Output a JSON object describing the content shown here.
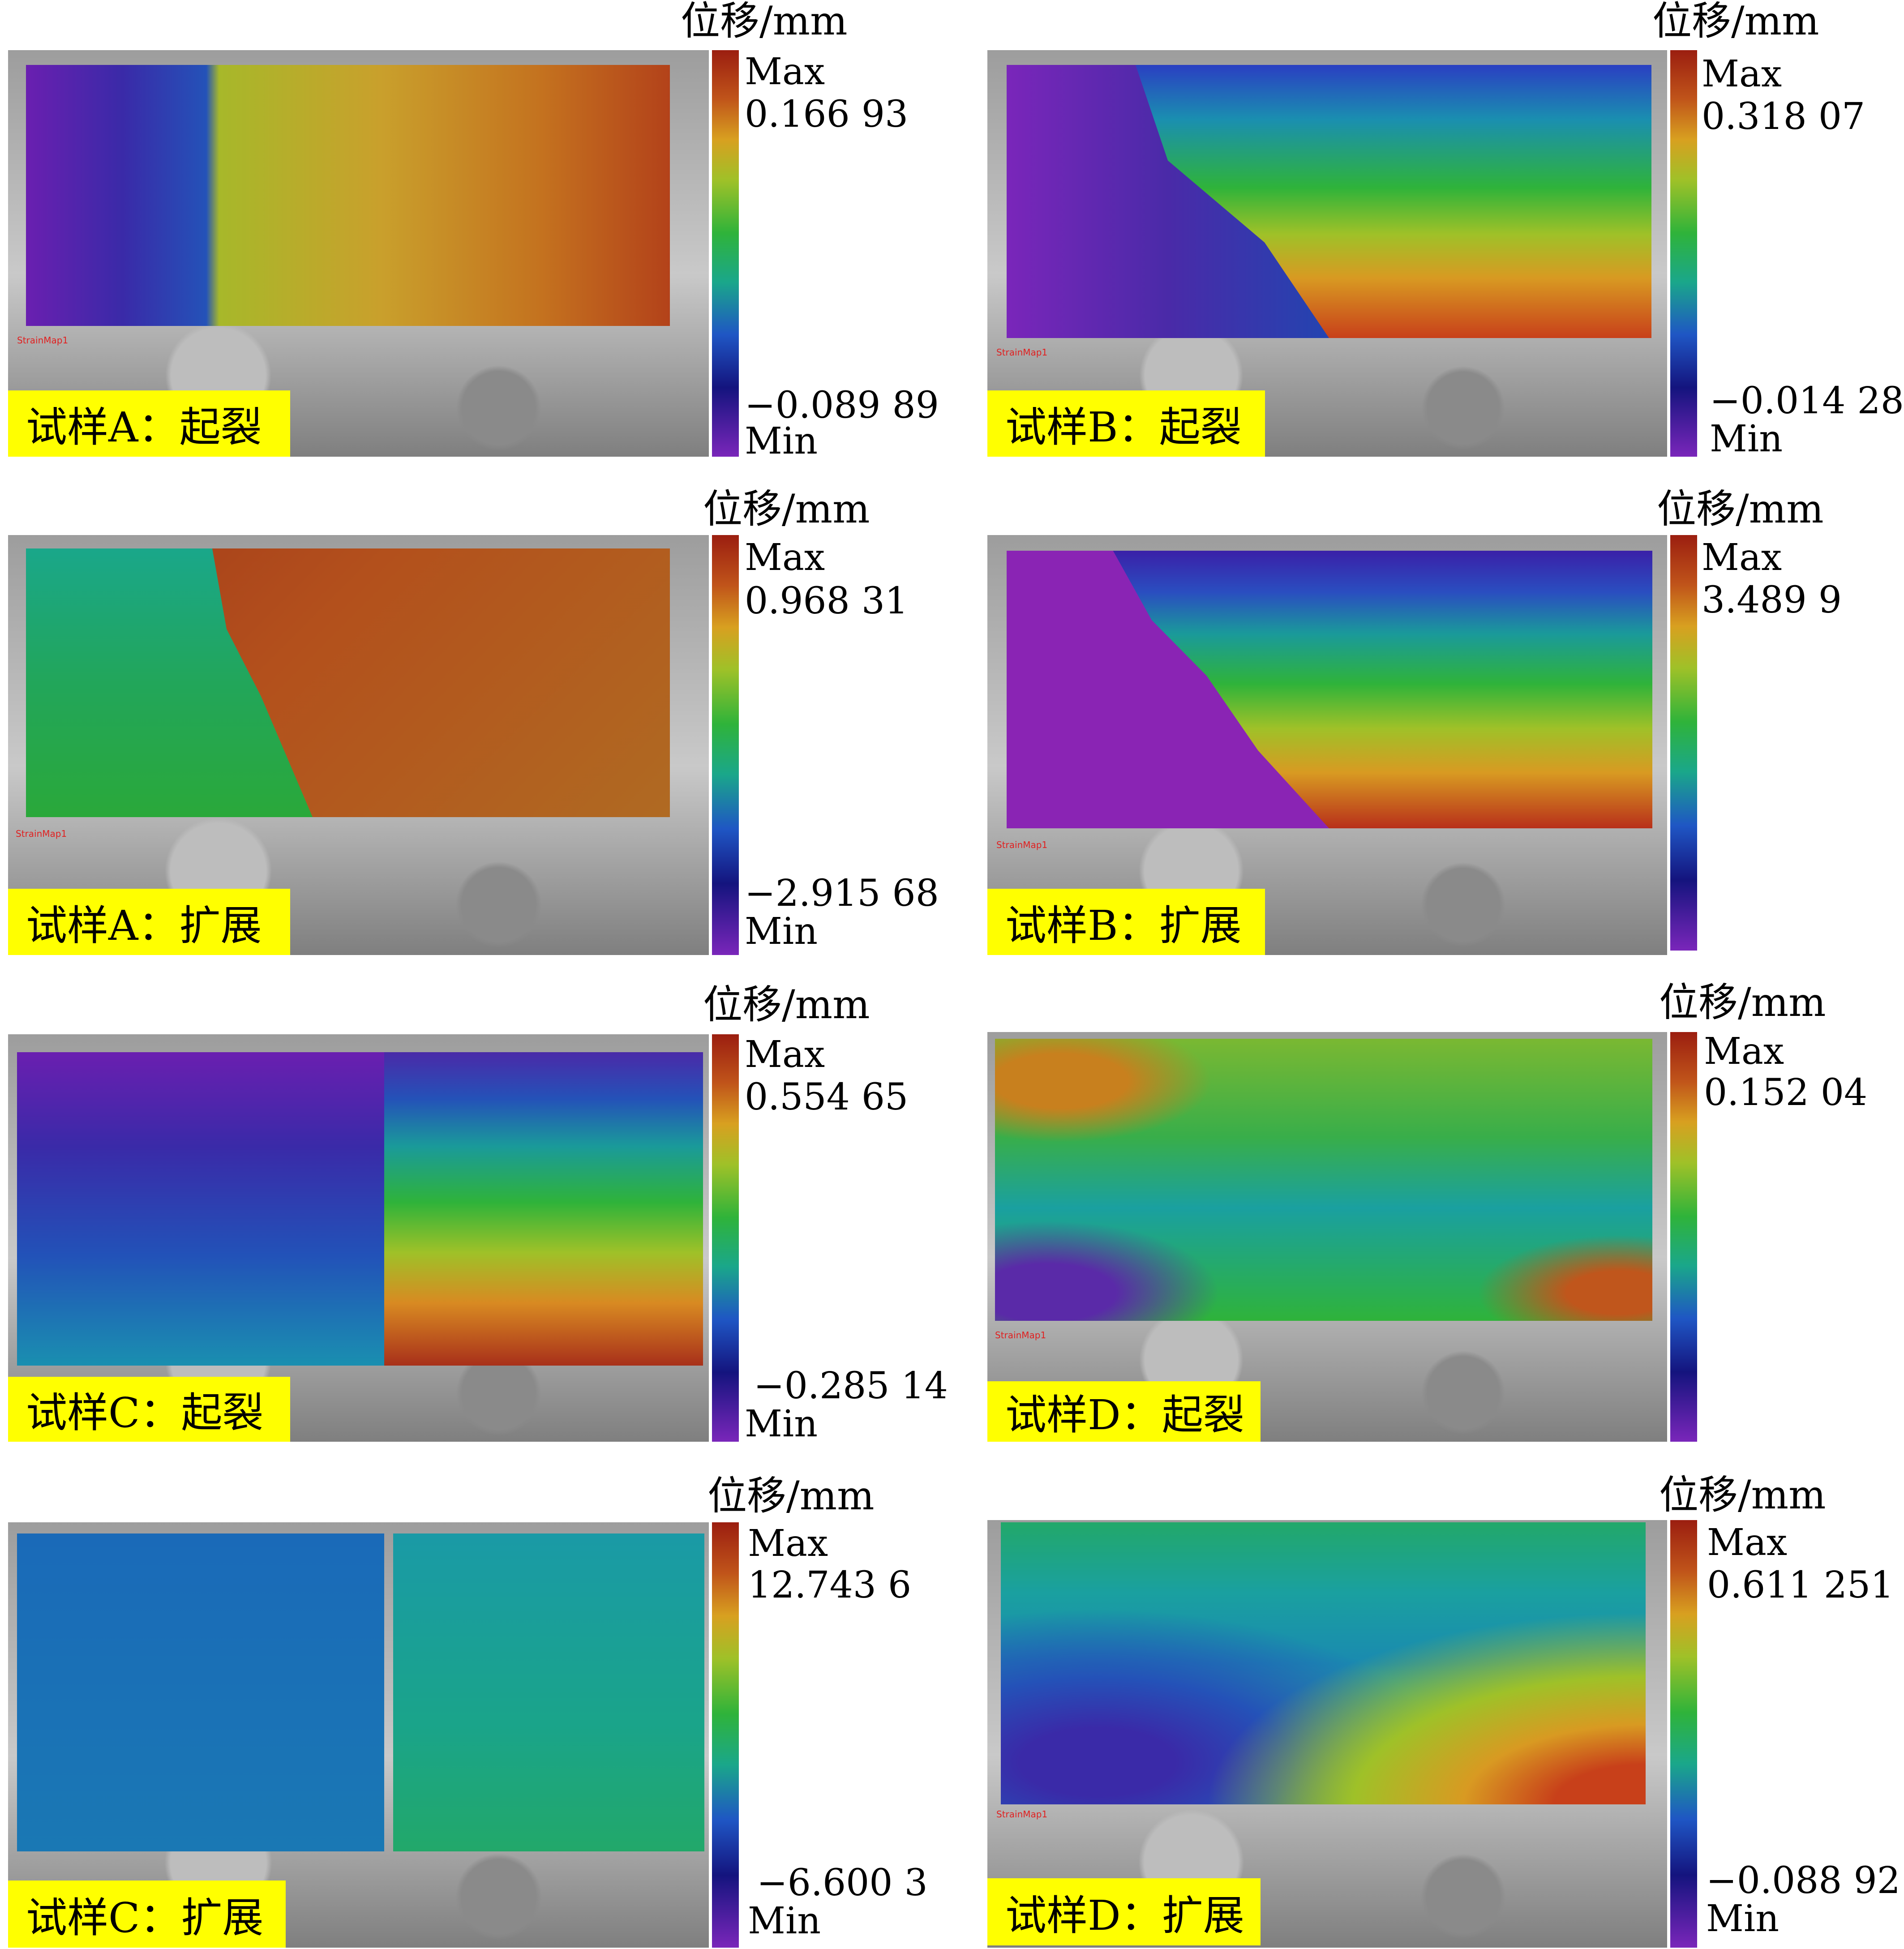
{
  "panels": [
    {
      "id": "a1",
      "label": "试样A：起裂",
      "unit": "位移/mm",
      "max_label": "Max",
      "max_value": "0.166 93",
      "min_value": "−0.089 89",
      "min_label": "Min"
    },
    {
      "id": "b1",
      "label": "试样B：起裂",
      "unit": "位移/mm",
      "max_label": "Max",
      "max_value": "0.318 07",
      "min_value": "−0.014 28",
      "min_label": "Min"
    },
    {
      "id": "a2",
      "label": "试样A：扩展",
      "unit": "位移/mm",
      "max_label": "Max",
      "max_value": "0.968 31",
      "min_value": "−2.915 68",
      "min_label": "Min"
    },
    {
      "id": "b2",
      "label": "试样B：扩展",
      "unit": "位移/mm",
      "max_label": "Max",
      "max_value": "3.489 9",
      "min_value": "",
      "min_label": ""
    },
    {
      "id": "c1",
      "label": "试样C：起裂",
      "unit": "位移/mm",
      "max_label": "Max",
      "max_value": "0.554 65",
      "min_value": "−0.285 14",
      "min_label": "Min"
    },
    {
      "id": "d1",
      "label": "试样D：起裂",
      "unit": "位移/mm",
      "max_label": "Max",
      "max_value": "0.152 04",
      "min_value": "",
      "min_label": ""
    },
    {
      "id": "c2",
      "label": "试样C：扩展",
      "unit": "位移/mm",
      "max_label": "Max",
      "max_value": "12.743 6",
      "min_value": "−6.600 3",
      "min_label": "Min"
    },
    {
      "id": "d2",
      "label": "试样D：扩展",
      "unit": "位移/mm",
      "max_label": "Max",
      "max_value": "0.611 251",
      "min_value": "−0.088 92",
      "min_label": "Min"
    }
  ],
  "strain_map_text": "StrainMap1",
  "colors": {
    "tag_bg": "#ffff00",
    "max_red": "#9b1e10",
    "min_purple": "#7a26ba"
  }
}
